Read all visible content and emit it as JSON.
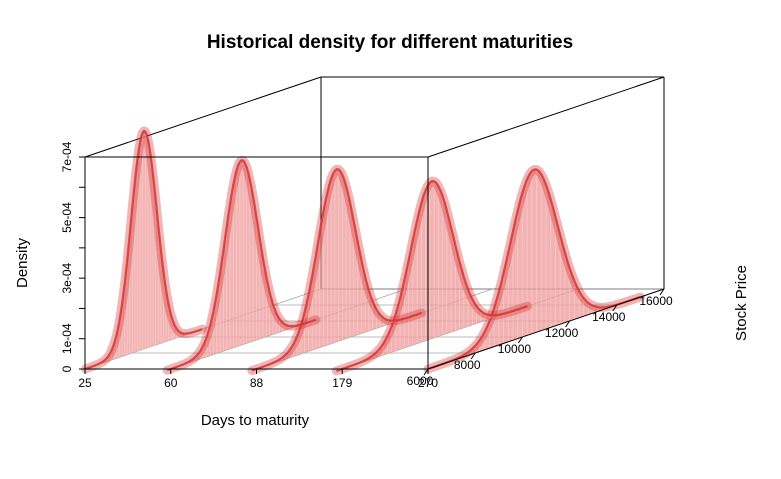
{
  "chart_data": {
    "type": "area",
    "title": "Historical density for different maturities",
    "xlabel": "Days to maturity",
    "ylabel": "Stock Price",
    "zlabel": "Density",
    "x_ticks": [
      "25",
      "60",
      "88",
      "179",
      "270"
    ],
    "y_ticks": [
      "6000",
      "8000",
      "10000",
      "12000",
      "14000",
      "16000"
    ],
    "z_ticks": [
      "0",
      "1e-04",
      "3e-04",
      "5e-04",
      "7e-04"
    ],
    "ylim": [
      6000,
      16000
    ],
    "zlim": [
      0,
      0.0007
    ],
    "series": [
      {
        "maturity": 25,
        "mean": 8500,
        "sd": 550,
        "peak": 0.00072
      },
      {
        "maturity": 60,
        "mean": 9000,
        "sd": 700,
        "peak": 0.00061
      },
      {
        "maturity": 88,
        "mean": 9400,
        "sd": 800,
        "peak": 0.00057
      },
      {
        "maturity": 179,
        "mean": 9800,
        "sd": 900,
        "peak": 0.00052
      },
      {
        "maturity": 270,
        "mean": 10500,
        "sd": 1000,
        "peak": 0.00054
      }
    ],
    "fill_color": "#ef9a9a",
    "line_color": "#d32f2f",
    "grid": true
  }
}
